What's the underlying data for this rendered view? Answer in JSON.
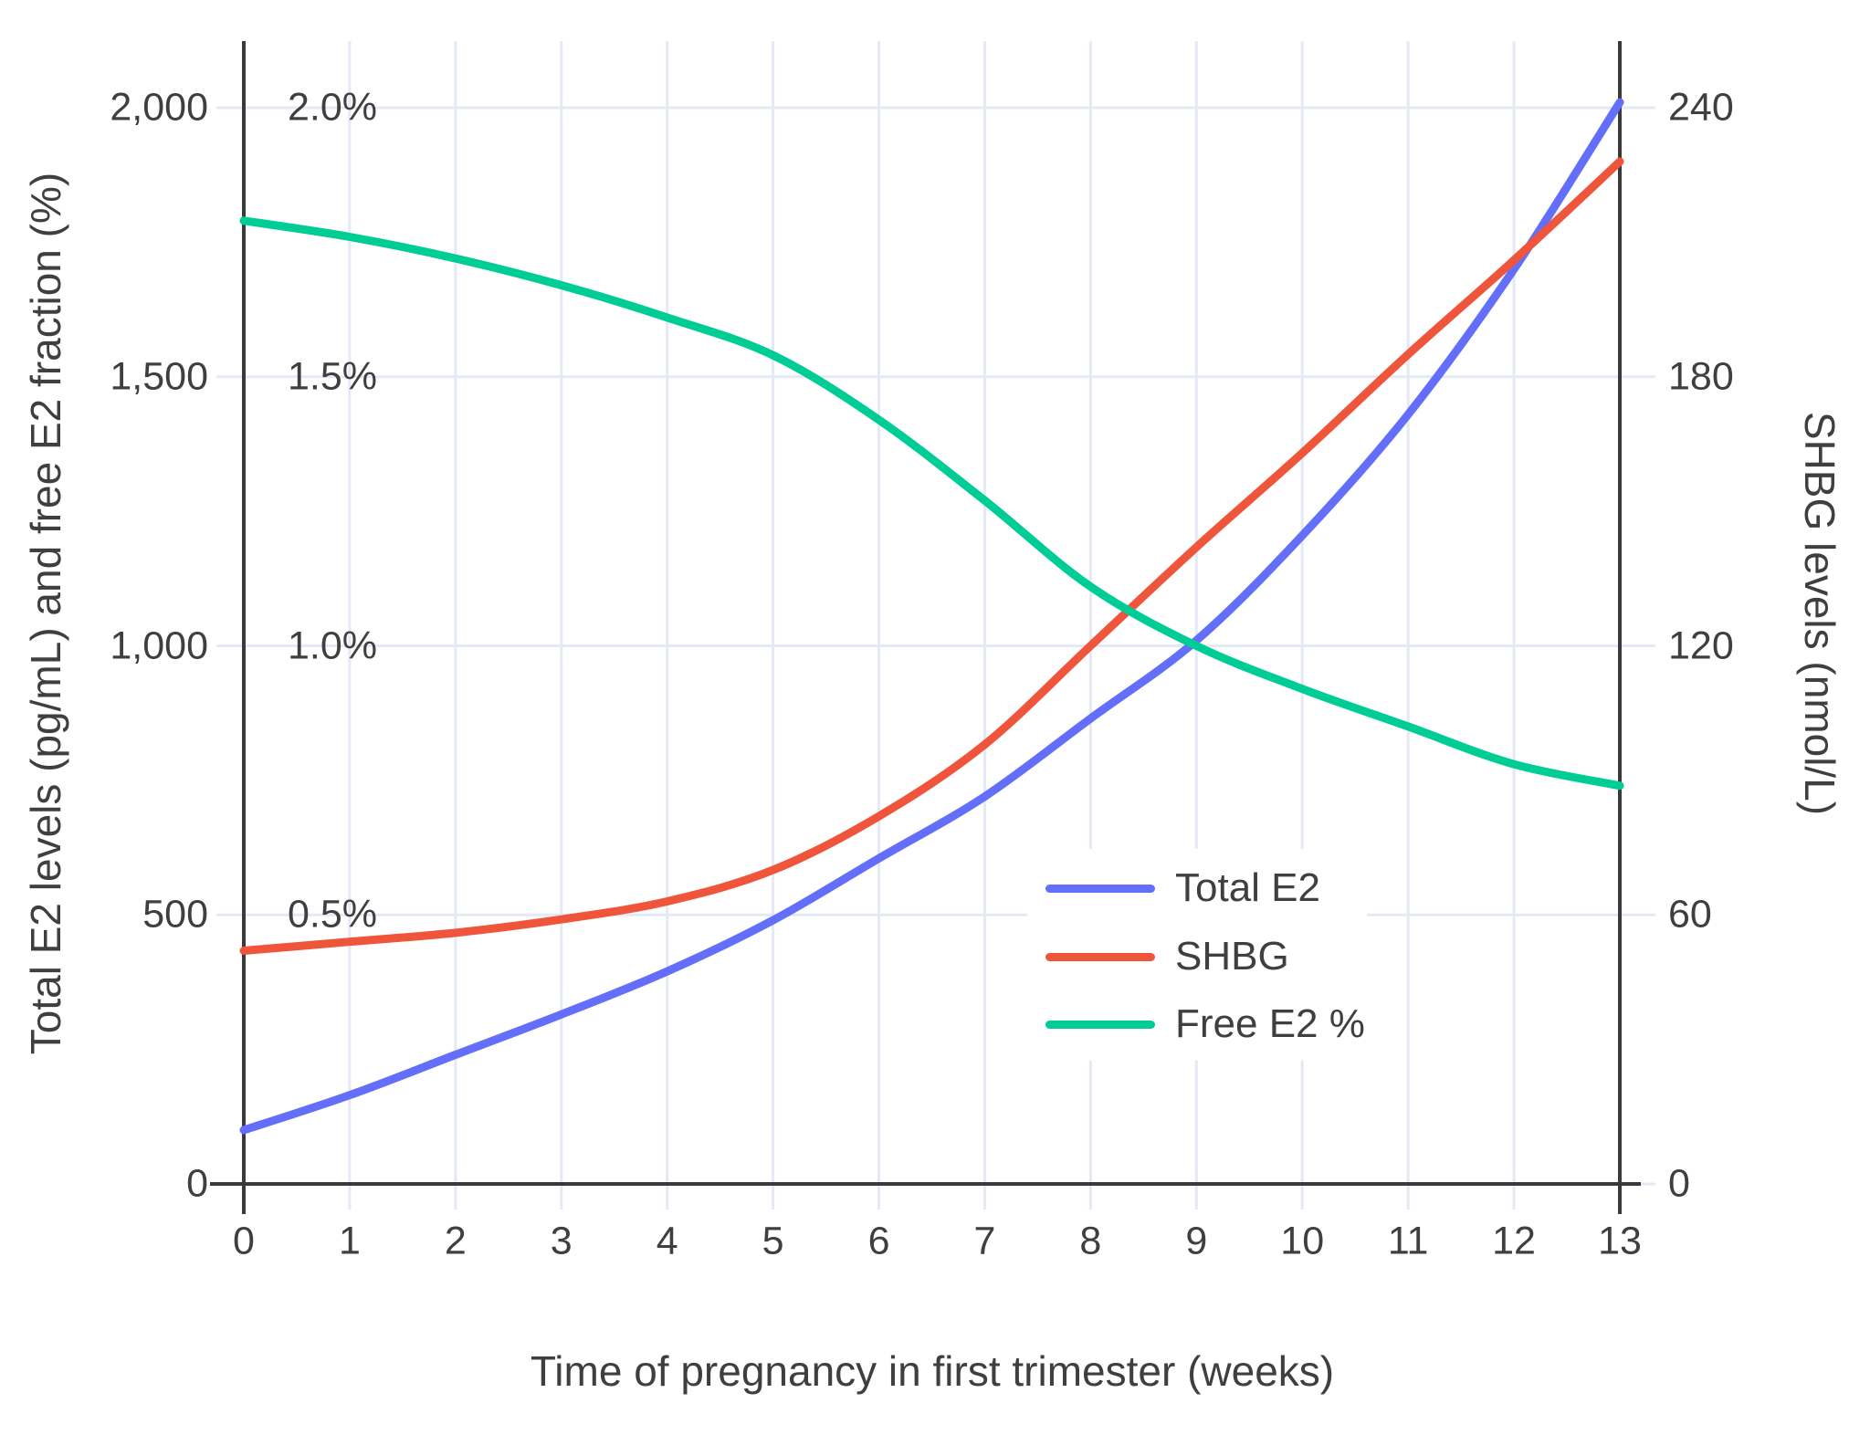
{
  "chart_data": {
    "type": "line",
    "title": "",
    "grid": true,
    "legend_position": "inside-right-lower",
    "x_axis": {
      "label": "Time of pregnancy in first trimester (weeks)",
      "range": [
        0,
        13
      ],
      "ticks": [
        "0",
        "1",
        "2",
        "3",
        "4",
        "5",
        "6",
        "7",
        "8",
        "9",
        "10",
        "11",
        "12",
        "13"
      ],
      "tick_values": [
        0,
        1,
        2,
        3,
        4,
        5,
        6,
        7,
        8,
        9,
        10,
        11,
        12,
        13
      ]
    },
    "y_axis_left": {
      "label": "Total E2 levels (pg/mL) and free E2 fraction (%)",
      "range": [
        0,
        2000
      ],
      "ticks": [
        "2,000",
        "1,500",
        "1,000",
        "500",
        "0"
      ],
      "tick_values": [
        2000,
        1500,
        1000,
        500,
        0
      ],
      "percent_ticks": [
        "2.0%",
        "1.5%",
        "1.0%",
        "0.5%"
      ],
      "percent_tick_values": [
        2000,
        1500,
        1000,
        500
      ]
    },
    "y_axis_right": {
      "label": "SHBG levels (nmol/L)",
      "range": [
        0,
        240
      ],
      "ticks": [
        "240",
        "180",
        "120",
        "60",
        "0"
      ],
      "tick_values": [
        240,
        180,
        120,
        60,
        0
      ]
    },
    "x": [
      0,
      1,
      2,
      3,
      4,
      5,
      6,
      7,
      8,
      9,
      10,
      11,
      12,
      13
    ],
    "series": [
      {
        "name": "Total E2",
        "color": "#636EFA",
        "axis": "left",
        "unit": "pg/mL",
        "values": [
          100,
          165,
          240,
          315,
          395,
          490,
          605,
          720,
          865,
          1010,
          1205,
          1430,
          1700,
          2010
        ]
      },
      {
        "name": "SHBG",
        "color": "#EF553B",
        "axis": "right",
        "unit": "nmol/L",
        "values": [
          52,
          54,
          56,
          59,
          63,
          70,
          82,
          98,
          120,
          142,
          163,
          185,
          206,
          228
        ]
      },
      {
        "name": "Free E2 %",
        "color": "#00CC96",
        "axis": "left_percent",
        "unit": "%",
        "values": [
          1.79,
          1.76,
          1.72,
          1.67,
          1.61,
          1.54,
          1.42,
          1.27,
          1.11,
          1.0,
          0.92,
          0.85,
          0.78,
          0.74
        ]
      }
    ]
  },
  "colors": {
    "total_e2": "#636EFA",
    "shbg": "#EF553B",
    "free_e2": "#00CC96",
    "gridline": "#E4E9F5",
    "axis_line": "#3A3A3A",
    "text": "#3F3F3F",
    "background": "#FFFFFF",
    "legend_background": "#FFFFFF"
  }
}
